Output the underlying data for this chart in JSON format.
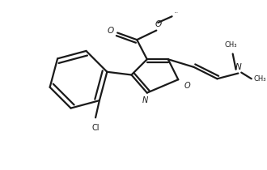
{
  "bg_color": "#ffffff",
  "line_color": "#1a1a1a",
  "line_width": 1.6,
  "figsize": [
    3.3,
    2.1
  ],
  "dpi": 100,
  "xlim": [
    0,
    330
  ],
  "ylim": [
    0,
    210
  ]
}
